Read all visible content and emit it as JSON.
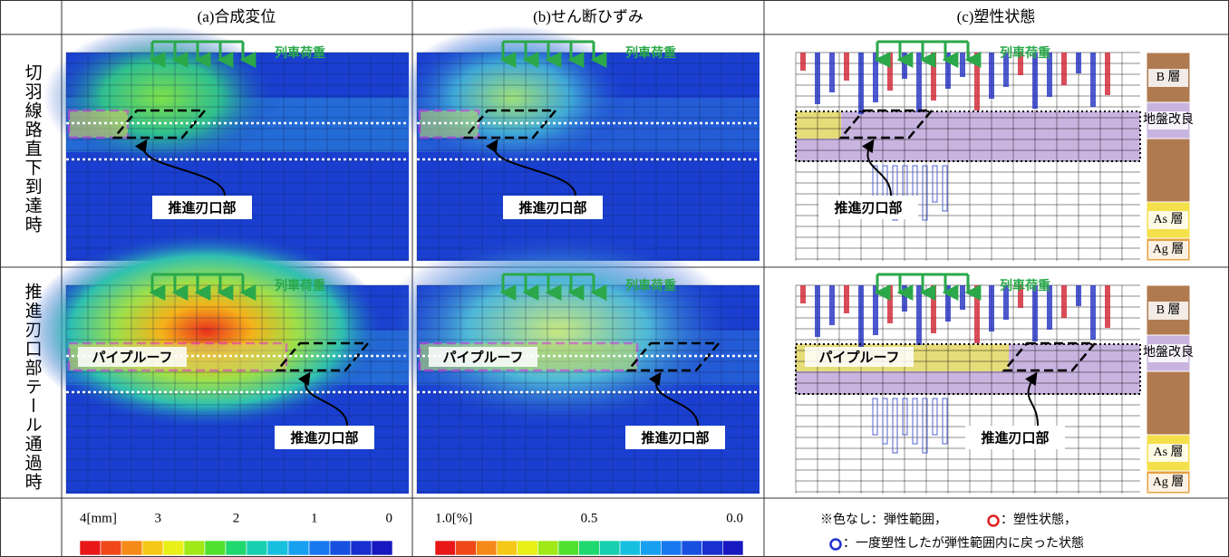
{
  "header": {
    "columns": [
      "(a)合成変位",
      "(b)せん断ひずみ",
      "(c)塑性状態"
    ]
  },
  "rows": [
    {
      "label": "切羽線路直下到達時"
    },
    {
      "label": "推進刃口部テール通過時"
    }
  ],
  "labels": {
    "load": "列車荷重",
    "tip": "推進刃口部",
    "roof": "パイプルーフ"
  },
  "layers": [
    "B 層",
    "地盤改良",
    "As 層",
    "Ag 層"
  ],
  "legend": {
    "a": [
      "4[mm]",
      "3",
      "2",
      "1",
      "0"
    ],
    "b": [
      "1.0[%]",
      "0.5",
      "0.0"
    ]
  },
  "note": {
    "elastic": "※色なし：弾性範囲，",
    "plastic": "：塑性状態，",
    "returned": "：一度塑性したが弾性範囲内に戻った状態"
  }
}
